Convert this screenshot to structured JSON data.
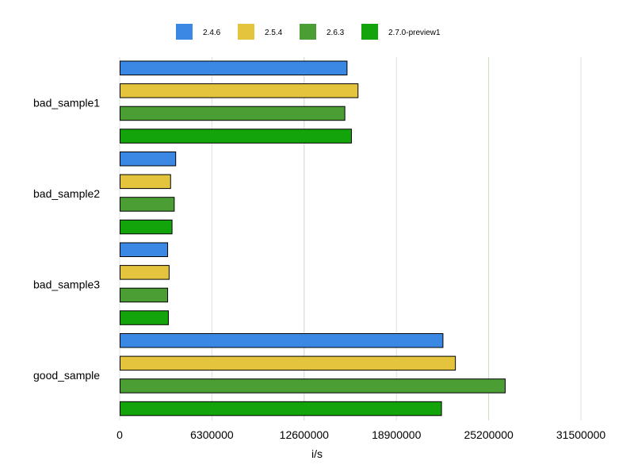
{
  "chart_data": {
    "type": "bar",
    "orientation": "horizontal",
    "categories": [
      "bad_sample1",
      "bad_sample2",
      "bad_sample3",
      "good_sample"
    ],
    "series": [
      {
        "name": "2.4.6",
        "color": "#3a87e4",
        "values": [
          15500000,
          3800000,
          3250000,
          22050000
        ]
      },
      {
        "name": "2.5.4",
        "color": "#e3c43c",
        "values": [
          16250000,
          3450000,
          3350000,
          22900000
        ]
      },
      {
        "name": "2.6.3",
        "color": "#4b9e34",
        "values": [
          15350000,
          3700000,
          3250000,
          26300000
        ]
      },
      {
        "name": "2.7.0-preview1",
        "color": "#12a40a",
        "values": [
          15800000,
          3550000,
          3300000,
          21950000
        ]
      }
    ],
    "xlabel": "i/s",
    "ylabel": "",
    "xlim": [
      0,
      33500000
    ],
    "xticks": [
      0,
      6300000,
      12600000,
      18900000,
      25200000,
      31500000
    ],
    "xtick_labels": [
      "0",
      "6300000",
      "12600000",
      "18900000",
      "25200000",
      "31500000"
    ],
    "grid": true,
    "legend": "top"
  }
}
